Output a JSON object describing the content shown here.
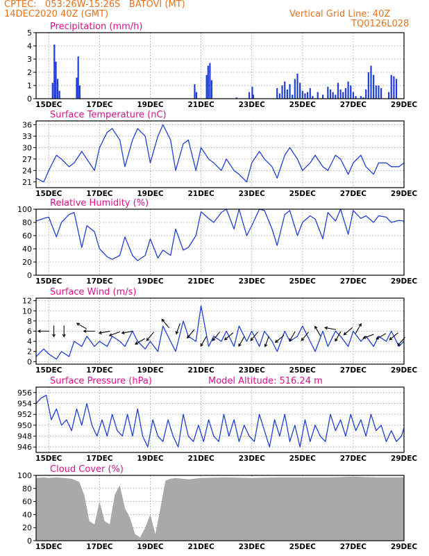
{
  "header": {
    "line1_left": "CPTEC:   053:26W-15:26S   BATOVI (MT)",
    "line2_left": "14DEC2020 40Z (GMT)",
    "line2_right": "Vertical Grid Line: 40Z",
    "line3_right": "TQ0126L028"
  },
  "colors": {
    "title": "#e0108a",
    "header": "#e8721c",
    "series": "#1f3fd6",
    "cloud": "#a9a9a9"
  },
  "chart_data": [
    {
      "id": "precip",
      "type": "bar",
      "title": "Precipitation (mm/h)",
      "ylim": [
        0,
        5
      ],
      "yticks": [
        0,
        1,
        2,
        3,
        4,
        5
      ],
      "xticks": [
        "15DEC",
        "17DEC",
        "19DEC",
        "21DEC",
        "23DEC",
        "25DEC",
        "27DEC",
        "29DEC"
      ],
      "xlim_days": [
        14.5,
        29
      ],
      "x": [
        15.15,
        15.22,
        15.28,
        15.35,
        15.42,
        16.1,
        16.16,
        16.22,
        20.75,
        20.82,
        21.22,
        21.28,
        21.35,
        21.42,
        22.4,
        22.9,
        23.02,
        23.06,
        24.0,
        24.1,
        24.2,
        24.3,
        24.4,
        24.5,
        24.6,
        24.7,
        24.8,
        24.9,
        25.0,
        25.1,
        25.2,
        25.3,
        25.4,
        25.6,
        25.8,
        26.0,
        26.1,
        26.2,
        26.3,
        26.4,
        26.5,
        26.6,
        26.7,
        26.8,
        26.9,
        27.0,
        27.1,
        27.3,
        27.4,
        27.5,
        27.6,
        27.7,
        27.8,
        27.9,
        28.0,
        28.1,
        28.4,
        28.5,
        28.6,
        28.7
      ],
      "values": [
        1.2,
        4.1,
        2.8,
        1.5,
        0.6,
        1.6,
        3.2,
        1.0,
        1.1,
        0.5,
        1.8,
        2.5,
        2.7,
        1.4,
        0.1,
        0.5,
        0.9,
        0.3,
        0.8,
        0.4,
        1.0,
        1.3,
        0.7,
        1.1,
        0.3,
        1.5,
        1.9,
        1.2,
        0.6,
        0.4,
        0.5,
        0.8,
        0.2,
        0.5,
        0.3,
        0.9,
        0.7,
        0.5,
        0.3,
        1.2,
        0.7,
        0.5,
        0.8,
        1.3,
        1.0,
        0.5,
        0.2,
        0.2,
        0.1,
        0.7,
        2.0,
        2.5,
        1.8,
        1.0,
        1.0,
        0.8,
        0.5,
        1.8,
        1.7,
        1.5
      ]
    },
    {
      "id": "temp",
      "type": "line",
      "title": "Surface Temperature (nC)",
      "ylim": [
        19.5,
        37
      ],
      "yticks": [
        21,
        24,
        27,
        30,
        33,
        36
      ],
      "xticks": [
        "15DEC",
        "17DEC",
        "19DEC",
        "21DEC",
        "23DEC",
        "25DEC",
        "27DEC",
        "29DEC"
      ],
      "xlim_days": [
        14.5,
        29
      ],
      "x": [
        14.5,
        14.8,
        15.0,
        15.3,
        15.5,
        15.8,
        16.0,
        16.3,
        16.5,
        16.8,
        17.0,
        17.3,
        17.5,
        17.8,
        18.0,
        18.3,
        18.5,
        18.8,
        19.0,
        19.3,
        19.5,
        19.8,
        20.0,
        20.3,
        20.5,
        20.8,
        21.0,
        21.3,
        21.5,
        21.8,
        22.0,
        22.3,
        22.5,
        22.8,
        23.0,
        23.3,
        23.5,
        23.8,
        24.0,
        24.3,
        24.5,
        24.8,
        25.0,
        25.3,
        25.5,
        25.8,
        26.0,
        26.3,
        26.5,
        26.8,
        27.0,
        27.3,
        27.5,
        27.8,
        28.0,
        28.3,
        28.5,
        28.8,
        29.0
      ],
      "values": [
        22,
        21,
        24,
        28,
        27,
        25,
        26,
        29,
        27,
        24,
        30,
        34,
        35,
        32,
        25,
        32,
        35,
        33,
        26,
        33,
        36,
        32,
        24,
        31,
        32,
        24,
        30,
        27,
        26,
        24,
        27,
        24,
        23,
        21,
        26,
        29,
        27,
        25,
        22,
        28,
        30,
        27,
        24,
        26,
        28,
        25,
        24,
        28,
        27,
        23,
        26,
        28,
        25,
        23,
        26,
        26,
        25,
        25,
        26
      ]
    },
    {
      "id": "rh",
      "type": "line",
      "title": "Relative Humidity (%)",
      "ylim": [
        0,
        100
      ],
      "yticks": [
        0,
        20,
        40,
        60,
        80,
        100
      ],
      "xticks": [
        "15DEC",
        "17DEC",
        "19DEC",
        "21DEC",
        "23DEC",
        "25DEC",
        "27DEC",
        "29DEC"
      ],
      "xlim_days": [
        14.5,
        29
      ],
      "x": [
        14.5,
        14.8,
        15.0,
        15.3,
        15.5,
        15.8,
        16.0,
        16.3,
        16.5,
        16.8,
        17.0,
        17.3,
        17.5,
        17.8,
        18.0,
        18.3,
        18.5,
        18.8,
        19.0,
        19.3,
        19.5,
        19.8,
        20.0,
        20.3,
        20.5,
        20.8,
        21.0,
        21.3,
        21.5,
        21.8,
        22.0,
        22.3,
        22.5,
        22.8,
        23.0,
        23.3,
        23.5,
        23.8,
        24.0,
        24.3,
        24.5,
        24.8,
        25.0,
        25.3,
        25.5,
        25.8,
        26.0,
        26.3,
        26.5,
        26.8,
        27.0,
        27.3,
        27.5,
        27.8,
        28.0,
        28.3,
        28.5,
        28.8,
        29.0
      ],
      "values": [
        82,
        86,
        88,
        58,
        80,
        92,
        95,
        42,
        75,
        66,
        40,
        28,
        24,
        30,
        58,
        30,
        22,
        30,
        55,
        26,
        38,
        30,
        70,
        38,
        42,
        60,
        96,
        86,
        80,
        95,
        100,
        70,
        100,
        60,
        75,
        100,
        98,
        70,
        45,
        92,
        98,
        60,
        80,
        90,
        85,
        55,
        95,
        82,
        100,
        62,
        98,
        86,
        90,
        80,
        90,
        88,
        80,
        83,
        82
      ]
    },
    {
      "id": "wind",
      "type": "line",
      "title": "Surface Wind (m/s)",
      "ylim": [
        -0.5,
        12.5
      ],
      "yticks": [
        0,
        2,
        4,
        6,
        8,
        10,
        12
      ],
      "xticks": [
        "15DEC",
        "17DEC",
        "19DEC",
        "21DEC",
        "23DEC",
        "25DEC",
        "27DEC",
        "29DEC"
      ],
      "xlim_days": [
        14.5,
        29
      ],
      "x": [
        14.5,
        14.8,
        15.0,
        15.3,
        15.5,
        15.8,
        16.0,
        16.3,
        16.5,
        16.8,
        17.0,
        17.3,
        17.5,
        17.8,
        18.0,
        18.3,
        18.5,
        18.8,
        19.0,
        19.3,
        19.5,
        19.8,
        20.0,
        20.3,
        20.5,
        20.8,
        21.0,
        21.3,
        21.5,
        21.8,
        22.0,
        22.3,
        22.5,
        22.8,
        23.0,
        23.3,
        23.5,
        23.8,
        24.0,
        24.3,
        24.5,
        24.8,
        25.0,
        25.3,
        25.5,
        25.8,
        26.0,
        26.3,
        26.5,
        26.8,
        27.0,
        27.3,
        27.5,
        27.8,
        28.0,
        28.3,
        28.5,
        28.8,
        29.0
      ],
      "values": [
        1,
        2.5,
        1.5,
        0.5,
        2,
        1,
        4,
        3,
        5,
        3,
        4,
        3,
        5,
        4,
        3,
        6,
        4,
        2.5,
        4,
        2,
        7,
        4,
        2,
        8,
        5,
        4,
        11,
        3,
        5,
        4,
        6,
        3,
        7,
        4,
        6,
        3,
        6,
        4,
        2,
        6,
        4,
        5,
        7,
        4,
        2,
        6,
        3,
        6,
        5,
        3,
        6,
        4,
        5,
        3,
        5,
        4,
        6,
        3,
        4
      ],
      "arrows": [
        {
          "x": 14.8,
          "y": 6,
          "angle": 180
        },
        {
          "x": 15.2,
          "y": 6,
          "angle": -90
        },
        {
          "x": 15.6,
          "y": 6,
          "angle": -90
        },
        {
          "x": 16.3,
          "y": 7,
          "angle": 150
        },
        {
          "x": 16.6,
          "y": 6,
          "angle": 180
        },
        {
          "x": 17.2,
          "y": 5.8,
          "angle": 190
        },
        {
          "x": 17.6,
          "y": 5.5,
          "angle": 200
        },
        {
          "x": 18.1,
          "y": 5.8,
          "angle": 190
        },
        {
          "x": 18.6,
          "y": 4,
          "angle": 210
        },
        {
          "x": 19.0,
          "y": 5,
          "angle": 230
        },
        {
          "x": 19.6,
          "y": 7.5,
          "angle": 130
        },
        {
          "x": 20.1,
          "y": 6.5,
          "angle": 250
        },
        {
          "x": 20.6,
          "y": 5.5,
          "angle": 230
        },
        {
          "x": 21.1,
          "y": 4,
          "angle": 240
        },
        {
          "x": 21.6,
          "y": 5,
          "angle": 230
        },
        {
          "x": 22.1,
          "y": 5,
          "angle": 220
        },
        {
          "x": 22.6,
          "y": 4,
          "angle": 240
        },
        {
          "x": 23.1,
          "y": 5,
          "angle": 230
        },
        {
          "x": 23.6,
          "y": 4,
          "angle": 250
        },
        {
          "x": 24.1,
          "y": 4.5,
          "angle": 220
        },
        {
          "x": 24.6,
          "y": 5,
          "angle": 240
        },
        {
          "x": 25.1,
          "y": 5,
          "angle": 230
        },
        {
          "x": 25.6,
          "y": 6,
          "angle": 120
        },
        {
          "x": 26.1,
          "y": 6.5,
          "angle": 170
        },
        {
          "x": 26.4,
          "y": 5,
          "angle": 240
        },
        {
          "x": 26.8,
          "y": 6,
          "angle": 220
        },
        {
          "x": 27.2,
          "y": 6.5,
          "angle": 60
        },
        {
          "x": 27.6,
          "y": 5,
          "angle": 200
        },
        {
          "x": 28.1,
          "y": 5,
          "angle": 210
        },
        {
          "x": 28.6,
          "y": 5,
          "angle": 220
        },
        {
          "x": 28.9,
          "y": 4,
          "angle": 230
        }
      ]
    },
    {
      "id": "pressure",
      "type": "line",
      "title": "Surface Pressure (hPa)",
      "subtitle": "Model Altitude: 516.24 m",
      "ylim": [
        945,
        957
      ],
      "yticks": [
        946,
        948,
        950,
        952,
        954,
        956
      ],
      "xticks": [
        "15DEC",
        "17DEC",
        "19DEC",
        "21DEC",
        "23DEC",
        "25DEC",
        "27DEC",
        "29DEC"
      ],
      "xlim_days": [
        14.5,
        29
      ],
      "x": [
        14.5,
        14.7,
        14.9,
        15.1,
        15.3,
        15.5,
        15.7,
        15.9,
        16.1,
        16.3,
        16.5,
        16.7,
        16.9,
        17.1,
        17.3,
        17.5,
        17.7,
        17.9,
        18.1,
        18.3,
        18.5,
        18.7,
        18.9,
        19.1,
        19.3,
        19.5,
        19.7,
        19.9,
        20.1,
        20.3,
        20.5,
        20.7,
        20.9,
        21.1,
        21.3,
        21.5,
        21.7,
        21.9,
        22.1,
        22.3,
        22.5,
        22.7,
        22.9,
        23.1,
        23.3,
        23.5,
        23.7,
        23.9,
        24.1,
        24.3,
        24.5,
        24.7,
        24.9,
        25.1,
        25.3,
        25.5,
        25.7,
        25.9,
        26.1,
        26.3,
        26.5,
        26.7,
        26.9,
        27.1,
        27.3,
        27.5,
        27.7,
        27.9,
        28.1,
        28.3,
        28.5,
        28.7,
        28.9,
        29.0
      ],
      "values": [
        954,
        955,
        955.5,
        951,
        953,
        950,
        951,
        949,
        953,
        950,
        954,
        950,
        948,
        951,
        948,
        952,
        949,
        948,
        952,
        948,
        953,
        948,
        946,
        951,
        948,
        947,
        951,
        948,
        946,
        952,
        948,
        947,
        950,
        947,
        951,
        948,
        947,
        952,
        948,
        951,
        947,
        950,
        948,
        947,
        952,
        949,
        946,
        951,
        948,
        952,
        947,
        950,
        946,
        951,
        947,
        950,
        948,
        947,
        952,
        949,
        951,
        948,
        952,
        949,
        951,
        948,
        952,
        949,
        950,
        947,
        949,
        947,
        948,
        949.5
      ]
    },
    {
      "id": "cloud",
      "type": "area",
      "title": "Cloud Cover (%)",
      "ylim": [
        0,
        100
      ],
      "yticks": [
        0,
        20,
        40,
        60,
        80,
        100
      ],
      "xticks": [
        "15DEC",
        "17DEC",
        "19DEC",
        "21DEC",
        "23DEC",
        "25DEC",
        "27DEC",
        "29DEC"
      ],
      "xlim_days": [
        14.5,
        29
      ],
      "x": [
        14.5,
        14.8,
        15.0,
        15.3,
        15.6,
        15.9,
        16.2,
        16.4,
        16.6,
        16.8,
        17.0,
        17.2,
        17.4,
        17.6,
        17.8,
        18.0,
        18.2,
        18.4,
        18.6,
        18.8,
        19.0,
        19.2,
        19.4,
        19.6,
        19.8,
        20.0,
        20.5,
        21.0,
        22.0,
        23.0,
        24.0,
        25.0,
        26.0,
        27.0,
        28.0,
        29.0
      ],
      "values": [
        96,
        97,
        96,
        97,
        96,
        95,
        90,
        70,
        30,
        25,
        60,
        30,
        25,
        70,
        85,
        50,
        35,
        10,
        5,
        20,
        40,
        10,
        50,
        92,
        95,
        96,
        94,
        96,
        97,
        96,
        97,
        97,
        97,
        98,
        97,
        97
      ]
    }
  ]
}
